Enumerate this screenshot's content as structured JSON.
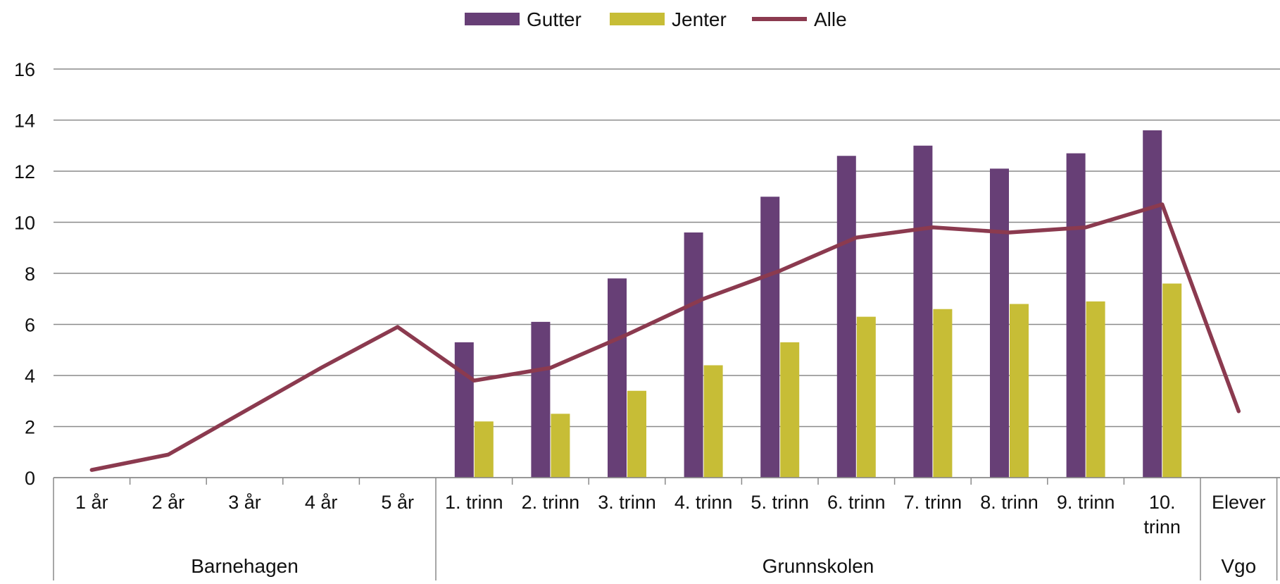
{
  "chart_data": {
    "type": "bar",
    "categories": [
      "1 år",
      "2 år",
      "3 år",
      "4 år",
      "5 år",
      "1. trinn",
      "2. trinn",
      "3. trinn",
      "4. trinn",
      "5. trinn",
      "6. trinn",
      "7. trinn",
      "8. trinn",
      "9. trinn",
      "10. trinn",
      "Elever"
    ],
    "category_labels": [
      [
        "1 år"
      ],
      [
        "2 år"
      ],
      [
        "3 år"
      ],
      [
        "4 år"
      ],
      [
        "5 år"
      ],
      [
        "1. trinn"
      ],
      [
        "2. trinn"
      ],
      [
        "3. trinn"
      ],
      [
        "4. trinn"
      ],
      [
        "5. trinn"
      ],
      [
        "6. trinn"
      ],
      [
        "7. trinn"
      ],
      [
        "8. trinn"
      ],
      [
        "9. trinn"
      ],
      [
        "10.",
        "trinn"
      ],
      [
        "Elever"
      ]
    ],
    "groups": [
      {
        "label": "Barnehagen",
        "start": 0,
        "end": 4
      },
      {
        "label": "Grunnskolen",
        "start": 5,
        "end": 14
      },
      {
        "label": "Vgo",
        "start": 15,
        "end": 15
      }
    ],
    "series": [
      {
        "name": "Gutter",
        "kind": "bar",
        "color": "#673f76",
        "values": [
          null,
          null,
          null,
          null,
          null,
          5.3,
          6.1,
          7.8,
          9.6,
          11.0,
          12.6,
          13.0,
          12.1,
          12.7,
          13.6,
          null
        ]
      },
      {
        "name": "Jenter",
        "kind": "bar",
        "color": "#c7bd36",
        "values": [
          null,
          null,
          null,
          null,
          null,
          2.2,
          2.5,
          3.4,
          4.4,
          5.3,
          6.3,
          6.6,
          6.8,
          6.9,
          7.6,
          null
        ]
      },
      {
        "name": "Alle",
        "kind": "line",
        "color": "#8b3a4f",
        "values": [
          0.3,
          0.9,
          2.6,
          4.3,
          5.9,
          3.8,
          4.3,
          5.6,
          7.0,
          8.1,
          9.4,
          9.8,
          9.6,
          9.8,
          10.7,
          2.6
        ]
      }
    ],
    "yticks": [
      0,
      2,
      4,
      6,
      8,
      10,
      12,
      14,
      16
    ],
    "ylim": [
      0,
      16
    ],
    "grid": true,
    "legend_position": "top-center",
    "title": "",
    "xlabel": "",
    "ylabel": ""
  }
}
